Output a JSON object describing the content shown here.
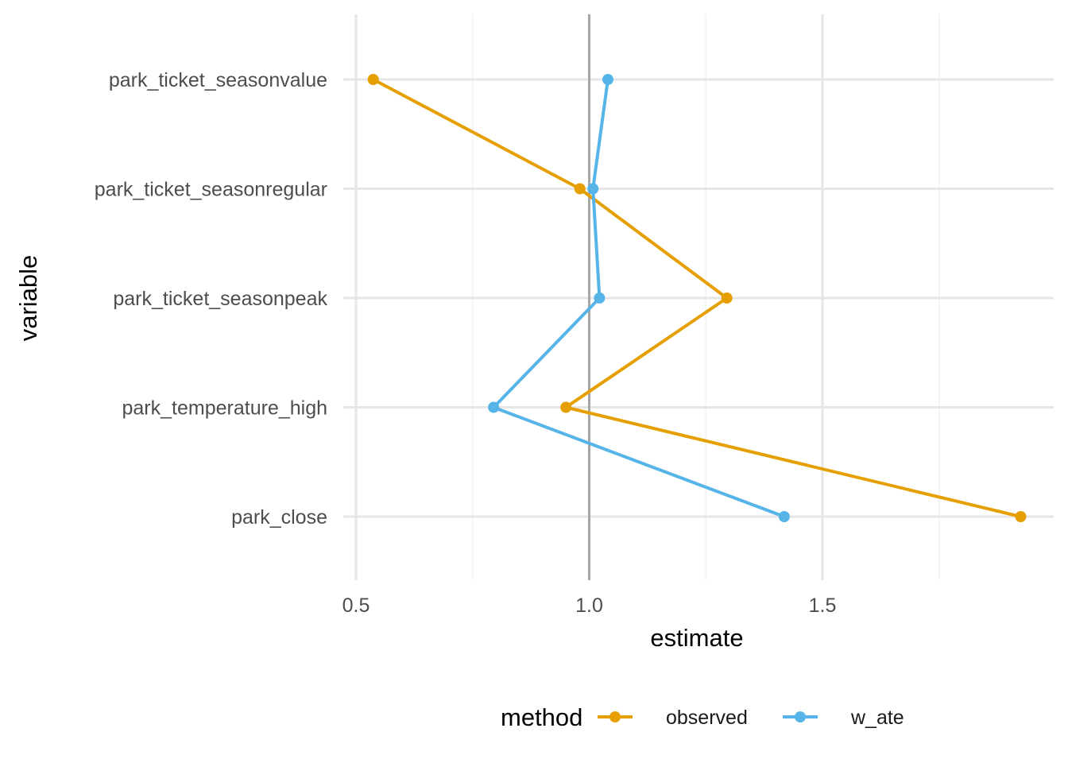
{
  "chart_data": {
    "type": "line",
    "xlabel": "estimate",
    "ylabel": "variable",
    "xlim": [
      0.46,
      1.93
    ],
    "x_ticks": [
      "0.5",
      "1.0",
      "1.5"
    ],
    "x_tick_values": [
      0.5,
      1.0,
      1.5
    ],
    "categories": [
      "park_ticket_seasonvalue",
      "park_ticket_seasonregular",
      "park_ticket_seasonpeak",
      "park_temperature_high",
      "park_close"
    ],
    "reference_line": 1.0,
    "grid": true,
    "legend_position": "bottom",
    "legend_title": "method",
    "series": [
      {
        "name": "observed",
        "color": "#E69F00",
        "values": [
          0.537,
          0.98,
          1.295,
          0.95,
          1.925
        ]
      },
      {
        "name": "w_ate",
        "color": "#56B4E9",
        "values": [
          1.04,
          1.008,
          1.022,
          0.795,
          1.418
        ]
      }
    ]
  }
}
